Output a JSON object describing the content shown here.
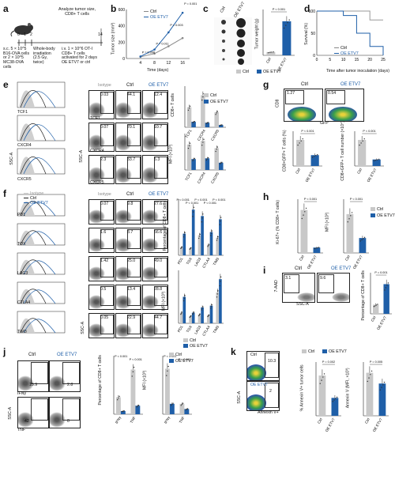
{
  "colors": {
    "ctrl": "#c8c8c8",
    "oe": "#1f5fa8",
    "black": "#222222",
    "facs_green": "#3aa04a",
    "facs_blue": "#2a4fb0",
    "facs_yellow": "#e8d23a"
  },
  "panels": {
    "a": {
      "label": "a",
      "top_text": "Analyze tumor size,\nCD8+ T cells",
      "days": [
        "0",
        "1",
        "2",
        "14"
      ],
      "left_text": "s.c. 5 × 10^5 B16-OVA cells or 2 × 10^5 MC38-OVA cells",
      "mid_text": "Whole-body irradiation (2.5 Gy, twice)",
      "right_text": "i.v. 1 × 10^6 OT-I CD8+ T cells activated for 2 days OE ETV7 or ctrl"
    },
    "b": {
      "label": "b",
      "ylabel": "Tumor size (mm³)",
      "xlabel": "Time (days)",
      "legend": [
        "Ctrl",
        "OE ETV7"
      ],
      "pvals": [
        "P = 0.096",
        "P = 0.011",
        "P = 0.003",
        "P = 0.001"
      ],
      "xticks": [
        "4",
        "8",
        "12",
        "16"
      ],
      "yticks": [
        "0",
        "200",
        "400",
        "600"
      ]
    },
    "c": {
      "label": "c",
      "cols": [
        "Ctrl",
        "OE ETV7"
      ],
      "ylabel": "Tumor weight (g)",
      "pval": "P < 0.001",
      "yticks": [
        "0",
        "0.5"
      ],
      "legend": [
        "Ctrl",
        "OE ETV7"
      ]
    },
    "d": {
      "label": "d",
      "ylabel": "Survival (%)",
      "xlabel": "Time after tumor inoculation (days)",
      "legend": [
        "Ctrl",
        "OE ETV7"
      ],
      "yticks": [
        "0",
        "50",
        "100"
      ],
      "xticks": [
        "0",
        "5",
        "10",
        "15",
        "20",
        "25"
      ]
    },
    "e": {
      "label": "e",
      "rows": [
        "TCF1",
        "CXCR4",
        "CXCR5"
      ],
      "isotype": "Isotype",
      "ctrl": "Ctrl",
      "oe": "OE ETV7",
      "vals": [
        [
          "0.03",
          "44.1",
          "12.4"
        ],
        [
          "0.07",
          "70.1",
          "10.7"
        ],
        [
          "2.3",
          "33.7",
          "5.3"
        ]
      ],
      "ssc": "SSC-A",
      "pct_ylabel": "CD8+ T cells",
      "mfi_ylabel": "MFI (×10³)",
      "legend": [
        "Ctrl",
        "OE ETV7"
      ],
      "xcats": [
        "TCF1",
        "CXCR4",
        "CXCR5"
      ]
    },
    "f": {
      "label": "f",
      "rows": [
        "PD1",
        "TOX",
        "LAG3",
        "CTLA4",
        "TIM3"
      ],
      "isotype": "Isotype",
      "ctrl": "Ctrl",
      "oe": "OE ETV7",
      "vals": [
        [
          "0.07",
          "9.8",
          "27.6"
        ],
        [
          "1.6",
          "8.7",
          "56.6"
        ],
        [
          "1.42",
          "25.0",
          "49.0"
        ],
        [
          "0.5",
          "13.4",
          "28.8"
        ],
        [
          "0.05",
          "22.9",
          "44.7"
        ]
      ],
      "ssc": "SSC-A",
      "pct_ylabel": "Percentage of CD8+ T cells",
      "mfi_ylabel": "MFI (×10³)",
      "xcats": [
        "PD1",
        "TOX",
        "LAG3",
        "CTLA4",
        "TIM3"
      ],
      "pvals": [
        "P < 0.001",
        "P < 0.001",
        "P < 0.001",
        "P < 0.001",
        "P < 0.001"
      ],
      "legend": [
        "Ctrl",
        "OE ETV7"
      ]
    },
    "g": {
      "label": "g",
      "ctrl": "Ctrl",
      "oe": "OE ETV7",
      "vals": [
        "1.27",
        "0.54"
      ],
      "ylab": "CD8",
      "xlab": "GFP",
      "bar1_ylabel": "CD8+GFP+ T cells (%)",
      "bar2_ylabel": "CD8+GFP+ T cell number (×10⁴)",
      "pval": "P < 0.001",
      "xcats": [
        "Ctrl",
        "OE ETV7"
      ]
    },
    "h": {
      "label": "h",
      "ylabel1": "Ki-67+ (% CD8+ T cells)",
      "ylabel2": "MFI (×10²)",
      "pval": "P < 0.001",
      "legend": [
        "Ctrl",
        "OE ETV7"
      ]
    },
    "i": {
      "label": "i",
      "ctrl": "Ctrl",
      "oe": "OE ETV7",
      "vals": [
        "3.1",
        "9.6"
      ],
      "ylab": "7-AAD",
      "xlab": "SSC-A",
      "ylabel": "Percentage of CD8+ T cells",
      "pval": "P = 0.001",
      "xcats": [
        "Ctrl",
        "OE ETV7"
      ]
    },
    "j": {
      "label": "j",
      "ctrl": "Ctrl",
      "oe": "OE ETV7",
      "rows": [
        "IFNγ",
        "TNF"
      ],
      "vals": [
        "15.9",
        "2.8",
        "42",
        "8"
      ],
      "ssc": "SSC-A",
      "ylabel1": "Percentage of CD8+ T cells",
      "ylabel2": "MFI (×10³)",
      "xcats": [
        "IFNγ",
        "TNF"
      ],
      "pvals": [
        "P < 0.001",
        "P < 0.001"
      ],
      "legend": [
        "Ctrl",
        "OE ETV7"
      ]
    },
    "k": {
      "label": "k",
      "ctrl": "Ctrl",
      "oe": "OE ETV7",
      "vals": [
        "10.3",
        "2"
      ],
      "ylab": "SSC-A",
      "xlab": "Annexin V+",
      "ylabel1": "% Annexin V+ tumor cells",
      "ylabel2": "Annexin V (MFI, ×10³)",
      "pvals": [
        "P = 0.002",
        "P = 0.005"
      ],
      "legend": [
        "Ctrl",
        "OE ETV7"
      ]
    }
  },
  "chart_data": [
    {
      "type": "line",
      "panel": "b",
      "x": [
        4,
        8,
        12,
        16
      ],
      "series": [
        {
          "name": "Ctrl",
          "values": [
            20,
            60,
            150,
            250
          ]
        },
        {
          "name": "OE ETV7",
          "values": [
            25,
            110,
            320,
            560
          ]
        }
      ]
    },
    {
      "type": "bar",
      "panel": "c",
      "categories": [
        "Ctrl",
        "OE ETV7"
      ],
      "values": [
        0.05,
        0.52
      ]
    },
    {
      "type": "line",
      "panel": "d",
      "series": [
        {
          "name": "Ctrl",
          "values": [
            100,
            100,
            100,
            100,
            80,
            80
          ]
        },
        {
          "name": "OE ETV7",
          "values": [
            100,
            100,
            90,
            50,
            20,
            0
          ]
        }
      ]
    },
    {
      "type": "bar",
      "panel": "e-pct",
      "categories": [
        "TCF1",
        "CXCR4",
        "CXCR5"
      ],
      "series": [
        {
          "name": "Ctrl",
          "values": [
            44,
            70,
            33
          ]
        },
        {
          "name": "OE ETV7",
          "values": [
            12,
            10,
            5
          ]
        }
      ]
    },
    {
      "type": "bar",
      "panel": "e-mfi",
      "categories": [
        "TCF1",
        "CXCR4",
        "CXCR5"
      ],
      "series": [
        {
          "name": "Ctrl",
          "values": [
            3.5,
            4,
            3
          ]
        },
        {
          "name": "OE ETV7",
          "values": [
            1.5,
            1.6,
            1
          ]
        }
      ]
    },
    {
      "type": "bar",
      "panel": "f-pct",
      "categories": [
        "PD1",
        "TOX",
        "LAG3",
        "CTLA4",
        "TIM3"
      ],
      "series": [
        {
          "name": "Ctrl",
          "values": [
            10,
            9,
            25,
            13,
            22
          ]
        },
        {
          "name": "OE ETV7",
          "values": [
            27,
            57,
            49,
            29,
            45
          ]
        }
      ]
    },
    {
      "type": "bar",
      "panel": "f-mfi",
      "categories": [
        "PD1",
        "TOX",
        "LAG3",
        "CTLA4",
        "TIM3"
      ],
      "series": [
        {
          "name": "Ctrl",
          "values": [
            1.2,
            0.8,
            1.0,
            0.9,
            3.5
          ]
        },
        {
          "name": "OE ETV7",
          "values": [
            3.0,
            1.2,
            1.8,
            2.0,
            5.0
          ]
        }
      ]
    },
    {
      "type": "bar",
      "panel": "g-pct",
      "categories": [
        "Ctrl",
        "OE ETV7"
      ],
      "values": [
        1.2,
        0.5
      ]
    },
    {
      "type": "bar",
      "panel": "g-num",
      "categories": [
        "Ctrl",
        "OE ETV7"
      ],
      "values": [
        6,
        1.5
      ]
    },
    {
      "type": "bar",
      "panel": "h-ki67",
      "categories": [
        "Ctrl",
        "OE ETV7"
      ],
      "values": [
        40,
        5
      ]
    },
    {
      "type": "bar",
      "panel": "h-mfi",
      "categories": [
        "Ctrl",
        "OE ETV7"
      ],
      "values": [
        65,
        25
      ]
    },
    {
      "type": "bar",
      "panel": "i",
      "categories": [
        "Ctrl",
        "OE ETV7"
      ],
      "values": [
        4,
        13
      ]
    },
    {
      "type": "bar",
      "panel": "j-pct",
      "categories": [
        "IFNγ",
        "TNF"
      ],
      "series": [
        {
          "name": "Ctrl",
          "values": [
            16,
            42
          ]
        },
        {
          "name": "OE ETV7",
          "values": [
            3,
            8
          ]
        }
      ]
    },
    {
      "type": "bar",
      "panel": "j-mfi",
      "categories": [
        "IFNγ",
        "TNF"
      ],
      "series": [
        {
          "name": "Ctrl",
          "values": [
            35,
            8
          ]
        },
        {
          "name": "OE ETV7",
          "values": [
            8,
            4
          ]
        }
      ]
    },
    {
      "type": "bar",
      "panel": "k-pct",
      "categories": [
        "Ctrl",
        "OE ETV7"
      ],
      "values": [
        9,
        4
      ]
    },
    {
      "type": "bar",
      "panel": "k-mfi",
      "categories": [
        "Ctrl",
        "OE ETV7"
      ],
      "values": [
        8,
        6
      ]
    }
  ]
}
